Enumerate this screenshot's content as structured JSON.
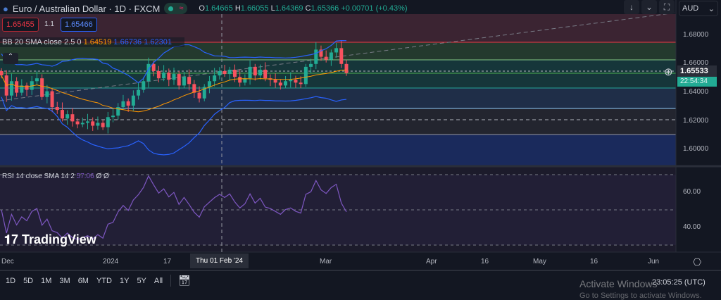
{
  "header": {
    "title": "Euro / Australian Dollar · 1D · FXCM",
    "status_wave": "≈",
    "ohlc": {
      "o_label": "O",
      "o": "1.64665",
      "h_label": "H",
      "h": "1.66055",
      "l_label": "L",
      "l": "1.64369",
      "c_label": "C",
      "c": "1.65366",
      "change": "+0.00701 (+0.43%)"
    }
  },
  "trade": {
    "sell": "1.65455",
    "spread": "1.1",
    "buy": "1.65466"
  },
  "indicators": {
    "bb": {
      "label": "BB 20 SMA close 2.5 0",
      "basis": "1.64519",
      "upper": "1.66736",
      "lower": "1.62301"
    },
    "rsi": {
      "label": "RSI 14 close SMA 14 2",
      "value": "57.06",
      "extra": "Ø Ø"
    }
  },
  "toolbar": {
    "down": "↓",
    "collapse": "⌃",
    "fullscreen": "⛶",
    "currency": "AUD",
    "currency_arrow": "⌄"
  },
  "price_axis": {
    "ticks": [
      "1.68000",
      "1.66000",
      "1.64000",
      "1.62000",
      "1.60000"
    ],
    "last_price": "1.65533",
    "countdown": "22:54:34"
  },
  "rsi_axis": {
    "ticks": [
      "60.00",
      "40.00"
    ]
  },
  "time_axis": {
    "labels": [
      "Dec",
      "2024",
      "17",
      "Mar",
      "Apr",
      "16",
      "May",
      "16",
      "Jun"
    ],
    "crosshair": "Thu 01 Feb '24"
  },
  "bottom": {
    "ranges": [
      "1D",
      "5D",
      "1M",
      "3M",
      "6M",
      "YTD",
      "1Y",
      "5Y",
      "All"
    ],
    "clock": "23:05:25 (UTC)"
  },
  "watermark": {
    "line1": "Activate Windows",
    "line2": "Go to Settings to activate Windows."
  },
  "logo": "TradingView",
  "colors": {
    "up": "#22ab94",
    "down": "#f7525f",
    "bb_band": "#2962ff",
    "bb_basis": "#ff9800",
    "rsi": "#7e57c2"
  },
  "chart_data": {
    "type": "candlestick",
    "symbol": "EURAUD",
    "interval": "1D",
    "closes": [
      1.652,
      1.638,
      1.648,
      1.64,
      1.645,
      1.642,
      1.648,
      1.65,
      1.637,
      1.641,
      1.63,
      1.628,
      1.622,
      1.625,
      1.62,
      1.618,
      1.619,
      1.62,
      1.617,
      1.619,
      1.616,
      1.623,
      1.624,
      1.63,
      1.634,
      1.631,
      1.638,
      1.642,
      1.648,
      1.66,
      1.655,
      1.65,
      1.654,
      1.649,
      1.653,
      1.645,
      1.651,
      1.646,
      1.64,
      1.636,
      1.644,
      1.648,
      1.652,
      1.655,
      1.653,
      1.656,
      1.651,
      1.647,
      1.65,
      1.658,
      1.652,
      1.656,
      1.65,
      1.649,
      1.647,
      1.645,
      1.648,
      1.649,
      1.647,
      1.646,
      1.658,
      1.66,
      1.67,
      1.665,
      1.663,
      1.668,
      1.671,
      1.66,
      1.6537
    ],
    "ylim": [
      1.59,
      1.69
    ],
    "rsi_ylim": [
      25,
      75
    ]
  }
}
